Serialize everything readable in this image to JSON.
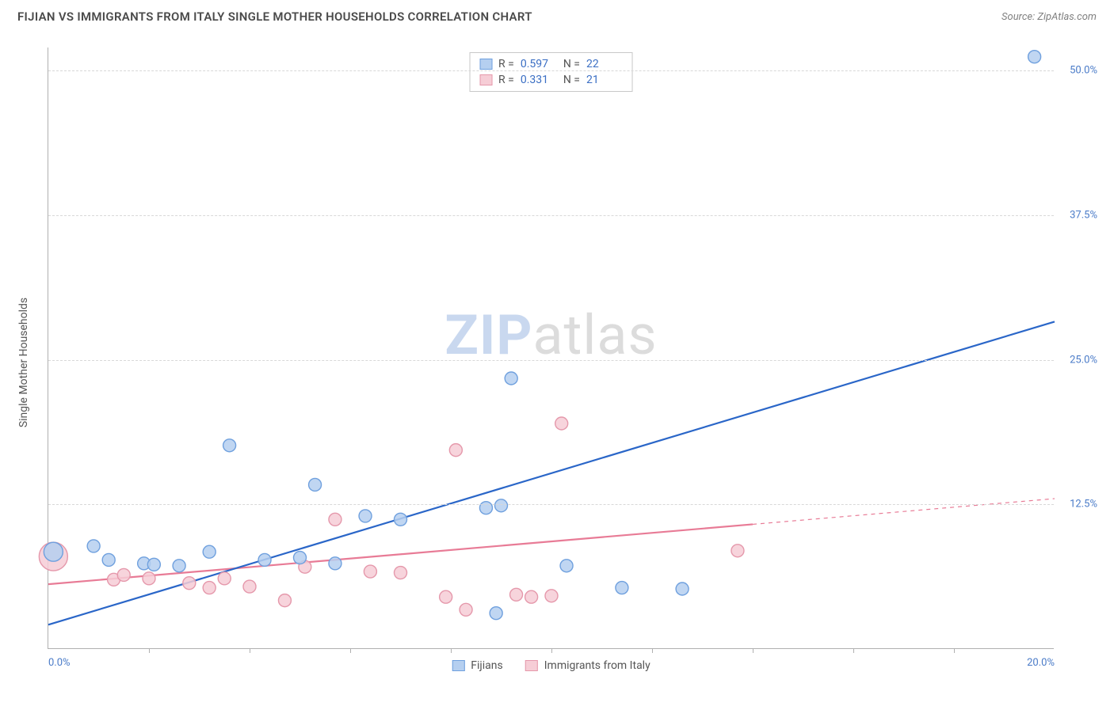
{
  "header": {
    "title": "FIJIAN VS IMMIGRANTS FROM ITALY SINGLE MOTHER HOUSEHOLDS CORRELATION CHART",
    "source": "Source: ZipAtlas.com"
  },
  "ylabel": "Single Mother Households",
  "watermark": {
    "bold": "ZIP",
    "rest": "atlas"
  },
  "chart": {
    "type": "scatter-with-regression",
    "xlim": [
      0,
      20
    ],
    "ylim": [
      0,
      52
    ],
    "y_ticks": [
      {
        "v": 12.5,
        "label": "12.5%"
      },
      {
        "v": 25.0,
        "label": "25.0%"
      },
      {
        "v": 37.5,
        "label": "37.5%"
      },
      {
        "v": 50.0,
        "label": "50.0%"
      }
    ],
    "x_ticks_minor": [
      2,
      4,
      6,
      8,
      10,
      12,
      14,
      16,
      18
    ],
    "x_tick_labels": [
      {
        "v": 0,
        "label": "0.0%",
        "align": "left"
      },
      {
        "v": 20,
        "label": "20.0%",
        "align": "right"
      }
    ],
    "grid_color": "#d8d8d8",
    "background_color": "#ffffff",
    "axis_color": "#b0b0b0",
    "series": [
      {
        "id": "fijians",
        "name": "Fijians",
        "color_fill": "#b5cff0",
        "color_stroke": "#6fa0de",
        "line_color": "#2a66c8",
        "line_width": 2.2,
        "marker_r": 8,
        "R": "0.597",
        "N": "22",
        "reg_line": {
          "x1": 0,
          "y1": 2.1,
          "x2": 20,
          "y2": 28.3,
          "solid_until_x": 20
        },
        "points": [
          {
            "x": 0.1,
            "y": 8.4,
            "r": 12
          },
          {
            "x": 0.9,
            "y": 8.9
          },
          {
            "x": 1.2,
            "y": 7.7
          },
          {
            "x": 1.9,
            "y": 7.4
          },
          {
            "x": 2.1,
            "y": 7.3
          },
          {
            "x": 2.6,
            "y": 7.2
          },
          {
            "x": 3.2,
            "y": 8.4
          },
          {
            "x": 3.6,
            "y": 17.6
          },
          {
            "x": 4.3,
            "y": 7.7
          },
          {
            "x": 5.0,
            "y": 7.9
          },
          {
            "x": 5.3,
            "y": 14.2
          },
          {
            "x": 5.7,
            "y": 7.4
          },
          {
            "x": 6.3,
            "y": 11.5
          },
          {
            "x": 7.0,
            "y": 11.2
          },
          {
            "x": 8.7,
            "y": 12.2
          },
          {
            "x": 8.9,
            "y": 3.1
          },
          {
            "x": 9.0,
            "y": 12.4
          },
          {
            "x": 9.2,
            "y": 23.4
          },
          {
            "x": 10.3,
            "y": 7.2
          },
          {
            "x": 11.4,
            "y": 5.3
          },
          {
            "x": 12.6,
            "y": 5.2
          },
          {
            "x": 19.6,
            "y": 51.2
          }
        ]
      },
      {
        "id": "italy",
        "name": "Immigrants from Italy",
        "color_fill": "#f6cdd6",
        "color_stroke": "#e598ab",
        "line_color": "#e87b96",
        "line_width": 2.2,
        "marker_r": 8,
        "R": "0.331",
        "N": "21",
        "reg_line": {
          "x1": 0,
          "y1": 5.6,
          "x2": 20,
          "y2": 13.0,
          "solid_until_x": 14
        },
        "points": [
          {
            "x": 0.1,
            "y": 8.0,
            "r": 18
          },
          {
            "x": 1.3,
            "y": 6.0
          },
          {
            "x": 1.5,
            "y": 6.4
          },
          {
            "x": 2.0,
            "y": 6.1
          },
          {
            "x": 2.8,
            "y": 5.7
          },
          {
            "x": 3.2,
            "y": 5.3
          },
          {
            "x": 3.5,
            "y": 6.1
          },
          {
            "x": 4.0,
            "y": 5.4
          },
          {
            "x": 4.7,
            "y": 4.2
          },
          {
            "x": 5.1,
            "y": 7.1
          },
          {
            "x": 5.7,
            "y": 11.2
          },
          {
            "x": 6.4,
            "y": 6.7
          },
          {
            "x": 7.0,
            "y": 6.6
          },
          {
            "x": 7.9,
            "y": 4.5
          },
          {
            "x": 8.1,
            "y": 17.2
          },
          {
            "x": 8.3,
            "y": 3.4
          },
          {
            "x": 9.3,
            "y": 4.7
          },
          {
            "x": 9.6,
            "y": 4.5
          },
          {
            "x": 10.0,
            "y": 4.6
          },
          {
            "x": 10.2,
            "y": 19.5
          },
          {
            "x": 13.7,
            "y": 8.5
          }
        ]
      }
    ]
  },
  "stats_box": {
    "rows": [
      {
        "series": "fijians"
      },
      {
        "series": "italy"
      }
    ],
    "labels": {
      "R": "R =",
      "N": "N ="
    }
  }
}
